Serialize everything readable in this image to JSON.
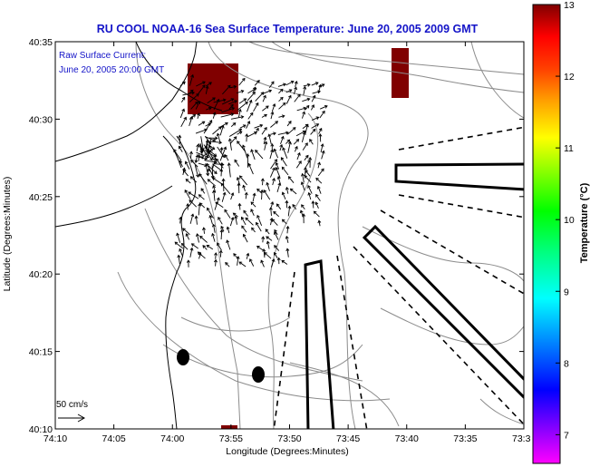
{
  "chart_data": {
    "type": "map",
    "title": "RU COOL  NOAA-16  Sea Surface Temperature:  June 20, 2005 2009 GMT",
    "annotation_line1": "Raw Surface Current:",
    "annotation_line2": "June 20, 2005 20:00 GMT",
    "xlabel": "Longitude (Degrees:Minutes)",
    "ylabel": "Latitude (Degrees:Minutes)",
    "x_ticks": [
      "74:10",
      "74:05",
      "74:00",
      "73:55",
      "73:50",
      "73:45",
      "73:40",
      "73:35",
      "73:3"
    ],
    "y_ticks": [
      "40:10",
      "40:15",
      "40:20",
      "40:25",
      "40:30",
      "40:35"
    ],
    "xlim_minutes_west": [
      74.1667,
      73.5
    ],
    "ylim_minutes_north": [
      40.1667,
      40.5833
    ],
    "colorbar": {
      "label": "Temperature (°C)",
      "ticks": [
        7,
        8,
        9,
        10,
        11,
        12,
        13
      ],
      "range": [
        6.6,
        13
      ],
      "colors": [
        "#ff00ff",
        "#8000ff",
        "#0000ff",
        "#0080ff",
        "#00ffff",
        "#00ff80",
        "#00ff00",
        "#80ff00",
        "#ffff00",
        "#ffa000",
        "#ff4000",
        "#ff0000",
        "#800000"
      ]
    },
    "scale_label": "50 cm/s",
    "sst_patches": [
      {
        "name": "nearshore-warm-patch",
        "temperature": 13
      },
      {
        "name": "offshore-warm-patch",
        "temperature": 13
      },
      {
        "name": "bottom-edge-patch",
        "temperature": 13
      }
    ]
  }
}
